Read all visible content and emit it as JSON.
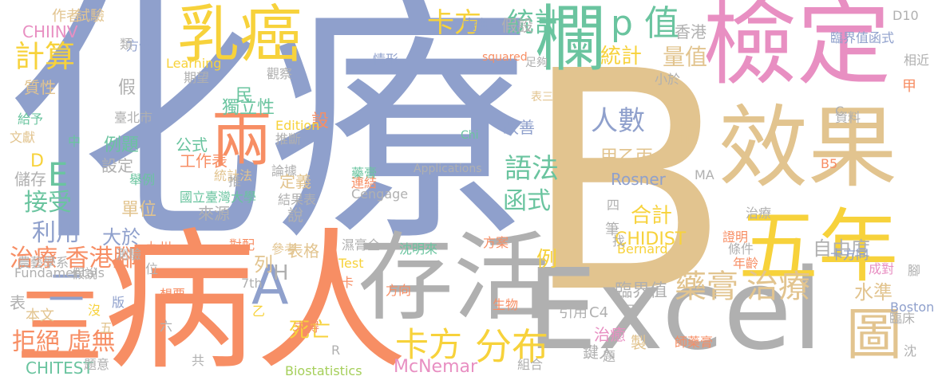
{
  "palette": {
    "blue": "#8fa0cc",
    "tan": "#e2c48f",
    "pink": "#e88fc2",
    "orange": "#f78e64",
    "gray": "#b0b0b0",
    "green": "#6ac49f",
    "yellow": "#f7d23b",
    "lime": "#a5cf5a"
  },
  "words": [
    "化療",
    "B",
    "檢定",
    "效果",
    "病人",
    "Excel",
    "存活",
    "欄",
    "乳癌",
    "五年",
    "卡方",
    "統計",
    "p 值",
    "兩",
    "藥膏",
    "治療",
    "圖",
    "分布",
    "計算",
    "人數",
    "語法",
    "函式",
    "三",
    "二",
    "A",
    "E",
    "接受",
    "利用",
    "治療 香港腳",
    "拒絕 虛無",
    "統計",
    "量值",
    "卡方",
    "CHIDIST",
    "McNemar",
    "Rosner",
    "臨界值",
    "水準",
    "自由度",
    "合計",
    "例",
    "列",
    "大於",
    "H",
    "格",
    "甲乙丙",
    "CHIINV",
    "CHITEST",
    "死亡",
    "表格",
    "虛無",
    "假設",
    "香港",
    "臨界值函式",
    "D10",
    "作者",
    "試驗",
    "方值",
    "Learning",
    "squared",
    "足夠",
    "情形",
    "相近",
    "甲",
    "小於",
    "期望",
    "觀察",
    "假",
    "質性",
    "民",
    "獨立性",
    "改善",
    "設",
    "Edition",
    "推斷",
    "公式",
    "工作表",
    "例題",
    "設定",
    "儲存",
    "D",
    "單位",
    "來源",
    "國立臺灣大學",
    "統計法",
    "推",
    "論據",
    "定義",
    "結果表",
    "說",
    "藥膏",
    "連結",
    "Cengage",
    "Applications",
    "Chi",
    "資料",
    "C",
    "表三",
    "臺北市",
    "給予",
    "文獻",
    "中",
    "舉例",
    "九州",
    "對配",
    "參考",
    "濕膏全",
    "方案",
    "Test",
    "沈明來",
    "Bernard",
    "鍵入",
    "製",
    "治癒",
    "引用",
    "C4",
    "生物",
    "方向",
    "卡",
    "求得",
    "乙",
    "六",
    "共",
    "想要",
    "7th",
    "R",
    "Boston",
    "丙",
    "師藥膏",
    "組合",
    "題意",
    "Biostatistics",
    "版",
    "五",
    "沒",
    "本文",
    "表",
    "假說",
    "農藝學系",
    "Fundamentals",
    "測驗",
    "位",
    "題",
    "四",
    "筆",
    "治療",
    "找",
    "證明",
    "年齡",
    "條件",
    "卡方同",
    "B5",
    "MA",
    "成對",
    "臨床",
    "腳",
    "沈",
    "類",
    "方值"
  ]
}
